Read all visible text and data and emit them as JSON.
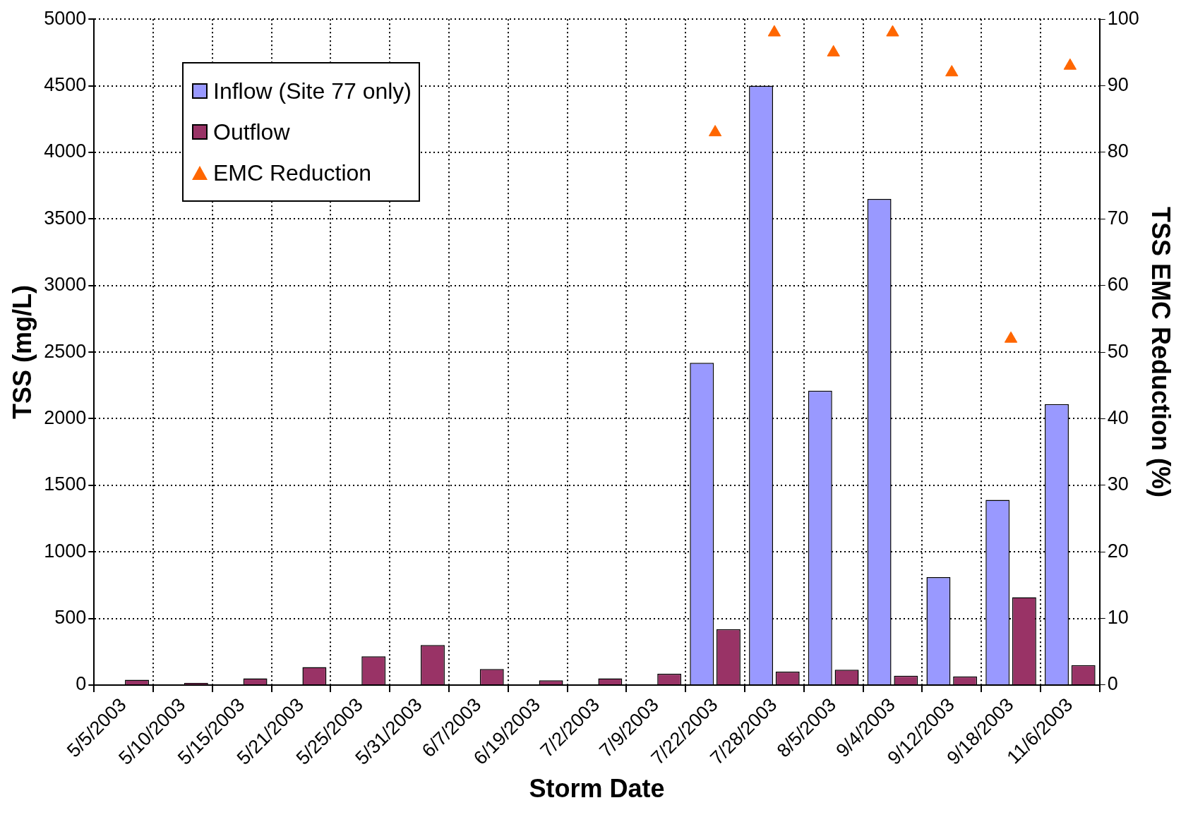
{
  "chart_data": {
    "type": "bar",
    "xlabel": "Storm Date",
    "ylabel": "TSS (mg/L)",
    "y2label": "TSS EMC Reduction (%)",
    "categories": [
      "5/5/2003",
      "5/10/2003",
      "5/15/2003",
      "5/21/2003",
      "5/25/2003",
      "5/31/2003",
      "6/7/2003",
      "6/19/2003",
      "7/2/2003",
      "7/9/2003",
      "7/22/2003",
      "7/28/2003",
      "8/5/2003",
      "9/4/2003",
      "9/12/2003",
      "9/18/2003",
      "11/6/2003"
    ],
    "series": [
      {
        "name": "Inflow (Site 77 only)",
        "color": "#9999ff",
        "values": [
          null,
          null,
          null,
          null,
          null,
          null,
          null,
          null,
          null,
          null,
          2420,
          4500,
          2210,
          3650,
          810,
          1390,
          2110
        ]
      },
      {
        "name": "Outflow",
        "color": "#993366",
        "values": [
          40,
          15,
          50,
          135,
          215,
          300,
          120,
          35,
          50,
          85,
          420,
          100,
          115,
          70,
          65,
          660,
          150
        ]
      },
      {
        "name": "EMC Reduction",
        "type": "scatter",
        "axis": "y2",
        "marker": "triangle",
        "color": "#ff6600",
        "values": [
          null,
          null,
          null,
          null,
          null,
          null,
          null,
          null,
          null,
          null,
          83,
          98,
          95,
          98,
          92,
          52,
          93
        ]
      }
    ],
    "ylim": [
      0,
      5000
    ],
    "yticks": [
      0,
      500,
      1000,
      1500,
      2000,
      2500,
      3000,
      3500,
      4000,
      4500,
      5000
    ],
    "y2lim": [
      0,
      100
    ],
    "y2ticks": [
      0,
      10,
      20,
      30,
      40,
      50,
      60,
      70,
      80,
      90,
      100
    ],
    "grid": true,
    "legend": "top left"
  }
}
